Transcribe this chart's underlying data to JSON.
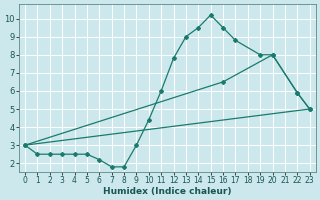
{
  "xlabel": "Humidex (Indice chaleur)",
  "bg_color": "#cce8ec",
  "grid_color": "#ffffff",
  "line_color": "#1a7a6e",
  "xlim": [
    -0.5,
    23.5
  ],
  "ylim": [
    1.5,
    10.8
  ],
  "yticks": [
    2,
    3,
    4,
    5,
    6,
    7,
    8,
    9,
    10
  ],
  "xticks": [
    0,
    1,
    2,
    3,
    4,
    5,
    6,
    7,
    8,
    9,
    10,
    11,
    12,
    13,
    14,
    15,
    16,
    17,
    18,
    19,
    20,
    21,
    22,
    23
  ],
  "line1_x": [
    0,
    1,
    2,
    3,
    4,
    5,
    6,
    7,
    8,
    9,
    10,
    11,
    12,
    13,
    14,
    15,
    16,
    17,
    19,
    20,
    22,
    23
  ],
  "line1_y": [
    3.0,
    2.5,
    2.5,
    2.5,
    2.5,
    2.5,
    2.2,
    1.8,
    1.8,
    3.0,
    4.4,
    6.0,
    7.8,
    9.0,
    9.5,
    10.2,
    9.5,
    8.8,
    8.0,
    8.0,
    5.9,
    5.0
  ],
  "line2_x": [
    0,
    23
  ],
  "line2_y": [
    3.0,
    5.0
  ],
  "line3_x": [
    0,
    16,
    20,
    22,
    23
  ],
  "line3_y": [
    3.0,
    6.5,
    8.0,
    5.9,
    5.0
  ]
}
